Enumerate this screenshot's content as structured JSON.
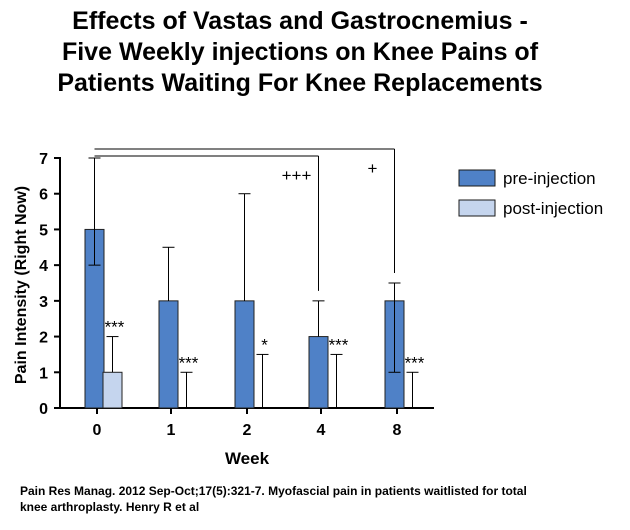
{
  "title_lines": [
    "Effects of Vastas and Gastrocnemius  -",
    "Five Weekly injections on Knee Pains of",
    "Patients Waiting For Knee Replacements"
  ],
  "citation_lines": [
    "Pain Res Manag. 2012 Sep-Oct;17(5):321-7.  Myofascial pain in patients waitlisted for total",
    "knee arthroplasty. Henry R et al"
  ],
  "chart_data": {
    "type": "bar",
    "categories": [
      "0",
      "1",
      "2",
      "4",
      "8"
    ],
    "xlabel": "Week",
    "ylabel": "Pain Intensity (Right Now)",
    "ylim": [
      0,
      7
    ],
    "yticks": [
      "0",
      "1",
      "2",
      "3",
      "4",
      "5",
      "6",
      "7"
    ],
    "series": [
      {
        "name": "pre-injection",
        "color": "#4f81c7",
        "values": [
          5,
          3,
          3,
          2,
          3
        ],
        "error_upper": [
          7,
          4.5,
          6,
          3,
          3.5
        ],
        "error_lower": [
          4,
          null,
          null,
          null,
          1
        ]
      },
      {
        "name": "post-injection",
        "color": "#c5d5ee",
        "values": [
          1,
          0,
          0,
          0,
          0
        ],
        "error_upper": [
          2,
          1,
          1.5,
          1.5,
          1
        ]
      }
    ],
    "annotations": [
      "***",
      "***",
      "*",
      "***",
      "***"
    ],
    "comparison_marks": [
      {
        "label": "+++",
        "to_category": "4"
      },
      {
        "label": "+",
        "to_category": "8"
      }
    ],
    "legend_position": "right",
    "grid": false
  }
}
